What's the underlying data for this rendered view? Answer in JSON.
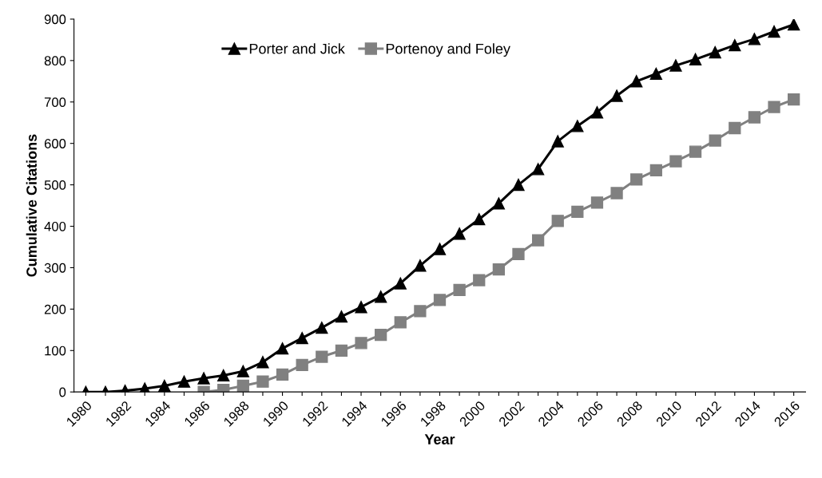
{
  "chart_data": {
    "type": "line",
    "xlabel": "Year",
    "ylabel": "Cumulative Citations",
    "categories": [
      "1980",
      null,
      "1982",
      null,
      "1984",
      null,
      "1986",
      null,
      "1988",
      null,
      "1990",
      null,
      "1992",
      null,
      "1994",
      null,
      "1996",
      null,
      "1998",
      null,
      "2000",
      null,
      "2002",
      null,
      "2004",
      null,
      "2006",
      null,
      "2008",
      null,
      "2010",
      null,
      "2012",
      null,
      "2014",
      null,
      "2016"
    ],
    "series": [
      {
        "name": "Porter and Jick",
        "color": "#000000",
        "marker": "triangle",
        "values": [
          0,
          0,
          3,
          8,
          15,
          25,
          33,
          40,
          50,
          72,
          105,
          130,
          155,
          182,
          205,
          230,
          262,
          305,
          345,
          382,
          417,
          455,
          500,
          538,
          605,
          642,
          675,
          715,
          750,
          768,
          788,
          803,
          820,
          837,
          852,
          870,
          887
        ]
      },
      {
        "name": "Portenoy and Foley",
        "color": "#808080",
        "marker": "square",
        "values": [
          null,
          null,
          null,
          null,
          null,
          null,
          0,
          5,
          15,
          25,
          42,
          65,
          85,
          100,
          118,
          138,
          168,
          195,
          222,
          246,
          270,
          296,
          333,
          366,
          413,
          435,
          457,
          480,
          513,
          535,
          557,
          580,
          607,
          637,
          663,
          688,
          706
        ]
      }
    ],
    "ylim": [
      0,
      900
    ],
    "yticks": [
      0,
      100,
      200,
      300,
      400,
      500,
      600,
      700,
      800,
      900
    ],
    "grid": false,
    "legend": "top",
    "line_style": "solid"
  }
}
